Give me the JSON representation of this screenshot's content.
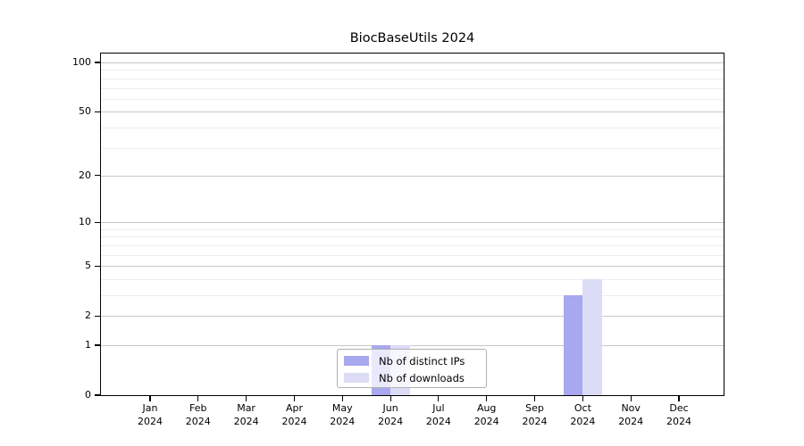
{
  "chart_data": {
    "type": "bar",
    "title": "BiocBaseUtils 2024",
    "categories": [
      "Jan",
      "Feb",
      "Mar",
      "Apr",
      "May",
      "Jun",
      "Jul",
      "Aug",
      "Sep",
      "Oct",
      "Nov",
      "Dec"
    ],
    "year": "2024",
    "series": [
      {
        "key": "distinct-ips",
        "name": "Nb of distinct IPs",
        "color": "#a8a8ee",
        "values": [
          0,
          0,
          0,
          0,
          0,
          1,
          0,
          0,
          0,
          3,
          0,
          0
        ]
      },
      {
        "key": "downloads",
        "name": "Nb of downloads",
        "color": "#dcdcf6",
        "values": [
          0,
          0,
          0,
          0,
          0,
          1,
          0,
          0,
          0,
          4,
          0,
          0
        ]
      }
    ],
    "yscale": "log1p",
    "ylim": [
      0,
      113
    ],
    "yticks": [
      0,
      1,
      2,
      5,
      10,
      20,
      50,
      100
    ],
    "minor_gridlines": [
      3,
      4,
      6,
      7,
      8,
      9,
      30,
      40,
      60,
      70,
      80,
      90
    ],
    "grid": true,
    "legend_position": "lower center",
    "colors": {
      "major_grid": "#c8c8c8",
      "minor_grid": "#ededed",
      "axis": "#000000",
      "background": "#ffffff"
    }
  }
}
